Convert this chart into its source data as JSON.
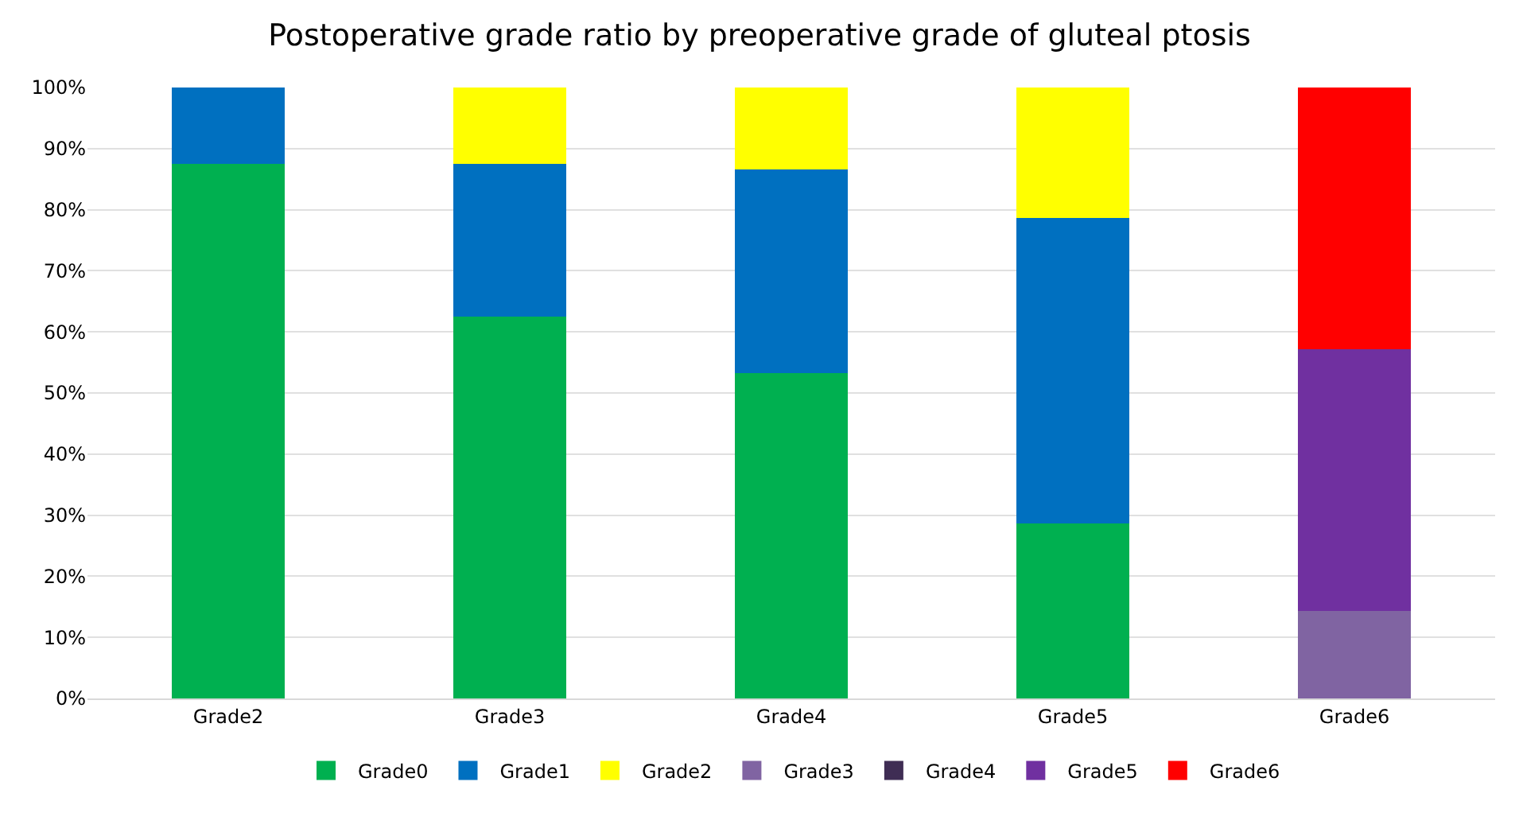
{
  "chart_data": {
    "type": "bar",
    "stacked": true,
    "title": "Postoperative grade ratio by preoperative grade of gluteal ptosis",
    "categories": [
      "Grade2",
      "Grade3",
      "Grade4",
      "Grade5",
      "Grade6"
    ],
    "series": [
      {
        "name": "Grade0",
        "color": "#00b050",
        "values": [
          87.5,
          62.5,
          53.3,
          28.6,
          0
        ]
      },
      {
        "name": "Grade1",
        "color": "#0070c0",
        "values": [
          12.5,
          25,
          33.3,
          50,
          0
        ]
      },
      {
        "name": "Grade2",
        "color": "#ffff00",
        "values": [
          0,
          12.5,
          13.4,
          21.4,
          0
        ]
      },
      {
        "name": "Grade3",
        "color": "#8064a2",
        "values": [
          0,
          0,
          0,
          0,
          14.3
        ]
      },
      {
        "name": "Grade4",
        "color": "#3f2d54",
        "values": [
          0,
          0,
          0,
          0,
          0
        ]
      },
      {
        "name": "Grade5",
        "color": "#7030a0",
        "values": [
          0,
          0,
          0,
          0,
          42.8
        ]
      },
      {
        "name": "Grade6",
        "color": "#ff0000",
        "values": [
          0,
          0,
          0,
          0,
          42.9
        ]
      }
    ],
    "ylim": [
      0,
      100
    ],
    "yticks": [
      {
        "value": 0,
        "label": "0%"
      },
      {
        "value": 10,
        "label": "10%"
      },
      {
        "value": 20,
        "label": "20%"
      },
      {
        "value": 30,
        "label": "30%"
      },
      {
        "value": 40,
        "label": "40%"
      },
      {
        "value": 50,
        "label": "50%"
      },
      {
        "value": 60,
        "label": "60%"
      },
      {
        "value": 70,
        "label": "70%"
      },
      {
        "value": 80,
        "label": "80%"
      },
      {
        "value": 90,
        "label": "90%"
      },
      {
        "value": 100,
        "label": "100%"
      }
    ],
    "grid": "y",
    "legend": "bottom"
  }
}
